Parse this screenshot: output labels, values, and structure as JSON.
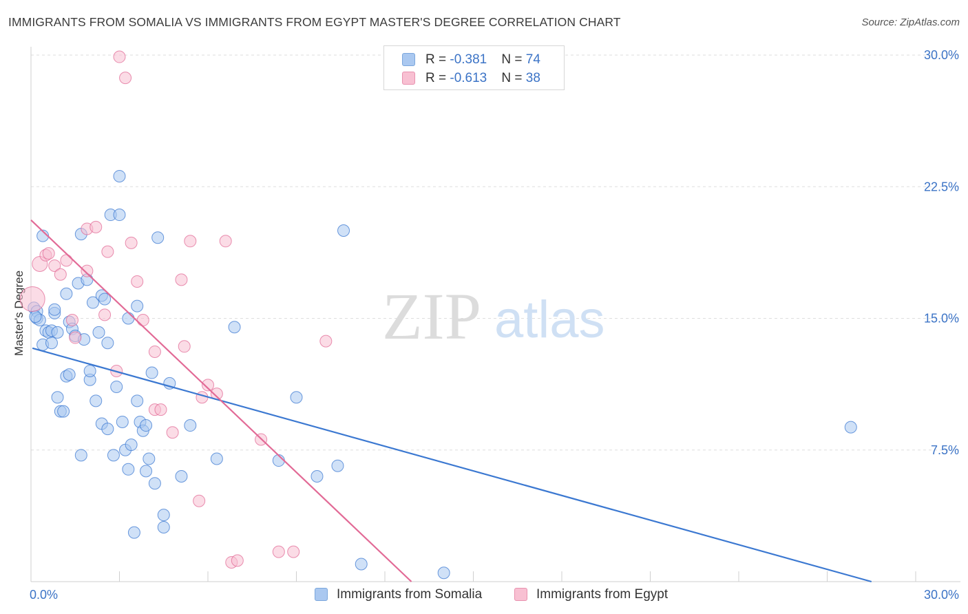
{
  "title": "IMMIGRANTS FROM SOMALIA VS IMMIGRANTS FROM EGYPT MASTER'S DEGREE CORRELATION CHART",
  "source": "Source: ZipAtlas.com",
  "watermark": {
    "zip": "ZIP",
    "atlas": "atlas"
  },
  "legend": {
    "rows": [
      {
        "r_label": "R = ",
        "r_value": "-0.381",
        "n_label": "N = ",
        "n_value": "74",
        "color": "#aac8f0",
        "border": "#7aa6dc"
      },
      {
        "r_label": "R = ",
        "r_value": "-0.613",
        "n_label": "N = ",
        "n_value": "38",
        "color": "#f8c0d2",
        "border": "#e890ae"
      }
    ]
  },
  "bottom_legend": [
    {
      "label": "Immigrants from Somalia",
      "color": "#aac8f0",
      "border": "#7aa6dc"
    },
    {
      "label": "Immigrants from Egypt",
      "color": "#f8c0d2",
      "border": "#e890ae"
    }
  ],
  "chart_data": {
    "type": "scatter",
    "title": "IMMIGRANTS FROM SOMALIA VS IMMIGRANTS FROM EGYPT MASTER'S DEGREE CORRELATION CHART",
    "xlabel": "",
    "ylabel": "Master's Degree",
    "xlim": [
      0,
      30
    ],
    "ylim": [
      0,
      30
    ],
    "x_tick_labels": [
      "0.0%",
      "30.0%"
    ],
    "y_ticks": [
      7.5,
      15.0,
      22.5,
      30.0
    ],
    "y_tick_labels": [
      "7.5%",
      "15.0%",
      "22.5%",
      "30.0%"
    ],
    "grid": true,
    "series": [
      {
        "name": "Immigrants from Somalia",
        "color": "#3b78d1",
        "fill": "#aac8f0",
        "trend": {
          "x0": 0.05,
          "y0": 13.3,
          "x1": 28.5,
          "y1": 0.0
        },
        "points": [
          [
            0.1,
            15.6
          ],
          [
            0.2,
            15.4
          ],
          [
            0.2,
            15.0
          ],
          [
            0.3,
            14.9
          ],
          [
            0.4,
            13.5
          ],
          [
            0.4,
            19.7
          ],
          [
            0.5,
            14.3
          ],
          [
            0.6,
            14.2
          ],
          [
            0.7,
            14.3
          ],
          [
            0.7,
            13.6
          ],
          [
            0.8,
            15.3
          ],
          [
            0.8,
            15.5
          ],
          [
            0.9,
            10.5
          ],
          [
            0.9,
            14.2
          ],
          [
            1.0,
            9.7
          ],
          [
            1.1,
            9.7
          ],
          [
            1.2,
            11.7
          ],
          [
            1.2,
            16.4
          ],
          [
            1.3,
            14.8
          ],
          [
            1.3,
            11.8
          ],
          [
            1.4,
            14.4
          ],
          [
            1.5,
            14.0
          ],
          [
            1.6,
            17.0
          ],
          [
            1.7,
            7.2
          ],
          [
            1.7,
            19.8
          ],
          [
            1.8,
            13.8
          ],
          [
            1.9,
            17.2
          ],
          [
            2.0,
            11.5
          ],
          [
            2.0,
            12.0
          ],
          [
            2.1,
            15.9
          ],
          [
            2.2,
            10.3
          ],
          [
            2.3,
            14.2
          ],
          [
            2.4,
            16.3
          ],
          [
            2.4,
            9.0
          ],
          [
            2.5,
            16.1
          ],
          [
            2.6,
            13.6
          ],
          [
            2.6,
            8.7
          ],
          [
            2.7,
            20.9
          ],
          [
            2.8,
            7.2
          ],
          [
            2.9,
            11.1
          ],
          [
            3.0,
            23.1
          ],
          [
            3.0,
            20.9
          ],
          [
            3.1,
            9.1
          ],
          [
            3.2,
            7.5
          ],
          [
            3.3,
            6.4
          ],
          [
            3.3,
            15.0
          ],
          [
            3.4,
            7.8
          ],
          [
            3.5,
            2.8
          ],
          [
            3.6,
            10.3
          ],
          [
            3.6,
            15.7
          ],
          [
            3.7,
            9.1
          ],
          [
            3.8,
            8.6
          ],
          [
            3.9,
            8.9
          ],
          [
            3.9,
            6.3
          ],
          [
            4.0,
            7.0
          ],
          [
            4.1,
            11.9
          ],
          [
            4.2,
            5.6
          ],
          [
            4.3,
            19.6
          ],
          [
            4.5,
            3.1
          ],
          [
            4.5,
            3.8
          ],
          [
            4.7,
            11.3
          ],
          [
            5.1,
            6.0
          ],
          [
            5.4,
            8.9
          ],
          [
            6.3,
            7.0
          ],
          [
            6.9,
            14.5
          ],
          [
            8.4,
            6.9
          ],
          [
            9.0,
            10.5
          ],
          [
            9.7,
            6.0
          ],
          [
            10.4,
            6.6
          ],
          [
            10.6,
            20.0
          ],
          [
            11.2,
            1.0
          ],
          [
            14.0,
            0.5
          ],
          [
            27.8,
            8.8
          ],
          [
            0.15,
            15.1
          ]
        ]
      },
      {
        "name": "Immigrants from Egypt",
        "color": "#e26a96",
        "fill": "#f8c0d2",
        "trend": {
          "x0": 0.0,
          "y0": 20.6,
          "x1": 12.9,
          "y1": 0.0
        },
        "points": [
          [
            0.05,
            16.1
          ],
          [
            0.3,
            18.1
          ],
          [
            0.5,
            18.6
          ],
          [
            0.6,
            18.7
          ],
          [
            0.8,
            18.0
          ],
          [
            1.0,
            17.5
          ],
          [
            1.2,
            18.3
          ],
          [
            1.4,
            14.9
          ],
          [
            1.5,
            13.9
          ],
          [
            1.9,
            17.7
          ],
          [
            1.9,
            20.1
          ],
          [
            2.2,
            20.2
          ],
          [
            2.5,
            15.2
          ],
          [
            2.6,
            18.8
          ],
          [
            2.9,
            12.0
          ],
          [
            3.0,
            29.9
          ],
          [
            3.2,
            28.7
          ],
          [
            3.4,
            19.3
          ],
          [
            3.6,
            17.1
          ],
          [
            3.8,
            14.9
          ],
          [
            4.2,
            13.1
          ],
          [
            4.2,
            9.8
          ],
          [
            4.4,
            9.8
          ],
          [
            4.8,
            8.5
          ],
          [
            5.1,
            17.2
          ],
          [
            5.2,
            13.4
          ],
          [
            5.4,
            19.4
          ],
          [
            5.7,
            4.6
          ],
          [
            5.8,
            10.5
          ],
          [
            6.0,
            11.2
          ],
          [
            6.3,
            10.7
          ],
          [
            6.6,
            19.4
          ],
          [
            6.8,
            1.1
          ],
          [
            7.0,
            1.2
          ],
          [
            7.8,
            8.1
          ],
          [
            8.4,
            1.7
          ],
          [
            8.9,
            1.7
          ],
          [
            10.0,
            13.7
          ]
        ]
      }
    ]
  }
}
